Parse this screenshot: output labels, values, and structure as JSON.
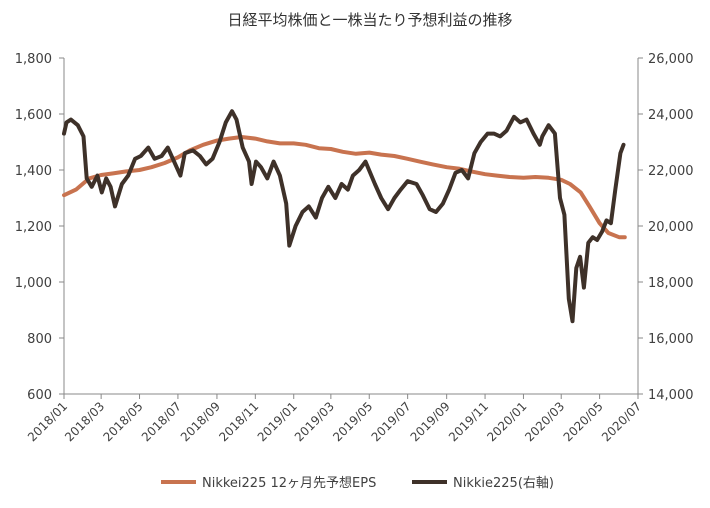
{
  "chart_data": {
    "type": "line",
    "title": "日経平均株価と一株当たり予想利益の推移",
    "xlabel": "",
    "ylabel_left": "",
    "ylabel_right": "",
    "ylim_left": [
      600,
      1800
    ],
    "ylim_right": [
      14000,
      26000
    ],
    "y_ticks_left": [
      "600",
      "800",
      "1,000",
      "1,200",
      "1,400",
      "1,600",
      "1,800"
    ],
    "y_ticks_right": [
      "14,000",
      "16,000",
      "18,000",
      "20,000",
      "22,000",
      "24,000",
      "26,000"
    ],
    "x_ticks": [
      "2018/01",
      "2018/03",
      "2018/05",
      "2018/07",
      "2018/09",
      "2018/11",
      "2019/01",
      "2019/03",
      "2019/05",
      "2019/07",
      "2019/09",
      "2019/11",
      "2020/01",
      "2020/03",
      "2020/05",
      "2020/07"
    ],
    "x_range": [
      "2018/01",
      "2020/07"
    ],
    "grid": false,
    "legend_position": "bottom",
    "colors": {
      "eps": "#C8734F",
      "nikkei": "#3E3129",
      "axis": "#888888",
      "text": "#404040"
    },
    "series": [
      {
        "name": "Nikkei225 12ヶ月先予想EPS",
        "axis": "left",
        "x": [
          "2018/01/01",
          "2018/01/20",
          "2018/02/10",
          "2018/03/01",
          "2018/03/20",
          "2018/04/10",
          "2018/05/01",
          "2018/05/20",
          "2018/06/10",
          "2018/07/01",
          "2018/07/20",
          "2018/08/10",
          "2018/09/01",
          "2018/09/20",
          "2018/10/10",
          "2018/11/01",
          "2018/11/20",
          "2018/12/10",
          "2019/01/01",
          "2019/01/20",
          "2019/02/10",
          "2019/03/01",
          "2019/03/20",
          "2019/04/10",
          "2019/05/01",
          "2019/05/20",
          "2019/06/10",
          "2019/07/01",
          "2019/07/20",
          "2019/08/10",
          "2019/09/01",
          "2019/09/20",
          "2019/10/10",
          "2019/11/01",
          "2019/11/20",
          "2019/12/10",
          "2020/01/01",
          "2020/01/20",
          "2020/02/10",
          "2020/03/01",
          "2020/03/15",
          "2020/04/01",
          "2020/04/15",
          "2020/05/01",
          "2020/05/15",
          "2020/06/01",
          "2020/06/10"
        ],
        "values": [
          1310,
          1330,
          1370,
          1382,
          1388,
          1395,
          1400,
          1410,
          1425,
          1445,
          1470,
          1490,
          1505,
          1512,
          1518,
          1512,
          1502,
          1495,
          1495,
          1490,
          1478,
          1475,
          1465,
          1458,
          1462,
          1455,
          1450,
          1440,
          1430,
          1420,
          1410,
          1405,
          1395,
          1385,
          1380,
          1375,
          1372,
          1375,
          1372,
          1365,
          1350,
          1320,
          1270,
          1210,
          1175,
          1160,
          1160
        ]
      },
      {
        "name": "Nikkie225(右軸)",
        "axis": "right",
        "x": [
          "2018/01/01",
          "2018/01/05",
          "2018/01/12",
          "2018/01/23",
          "2018/02/01",
          "2018/02/06",
          "2018/02/14",
          "2018/02/23",
          "2018/03/02",
          "2018/03/09",
          "2018/03/16",
          "2018/03/23",
          "2018/04/03",
          "2018/04/13",
          "2018/04/24",
          "2018/05/03",
          "2018/05/15",
          "2018/05/25",
          "2018/06/05",
          "2018/06/15",
          "2018/06/25",
          "2018/07/05",
          "2018/07/12",
          "2018/07/25",
          "2018/08/05",
          "2018/08/15",
          "2018/08/25",
          "2018/09/05",
          "2018/09/15",
          "2018/09/25",
          "2018/10/02",
          "2018/10/12",
          "2018/10/22",
          "2018/10/26",
          "2018/11/02",
          "2018/11/10",
          "2018/11/20",
          "2018/11/30",
          "2018/12/10",
          "2018/12/20",
          "2018/12/25",
          "2019/01/04",
          "2019/01/15",
          "2019/01/25",
          "2019/02/05",
          "2019/02/15",
          "2019/02/25",
          "2019/03/08",
          "2019/03/18",
          "2019/03/28",
          "2019/04/05",
          "2019/04/15",
          "2019/04/25",
          "2019/05/10",
          "2019/05/20",
          "2019/05/31",
          "2019/06/10",
          "2019/06/20",
          "2019/07/01",
          "2019/07/15",
          "2019/07/25",
          "2019/08/05",
          "2019/08/15",
          "2019/08/26",
          "2019/09/05",
          "2019/09/15",
          "2019/09/25",
          "2019/10/05",
          "2019/10/15",
          "2019/10/25",
          "2019/11/05",
          "2019/11/15",
          "2019/11/25",
          "2019/12/05",
          "2019/12/17",
          "2019/12/27",
          "2020/01/06",
          "2020/01/17",
          "2020/01/27",
          "2020/01/31",
          "2020/02/10",
          "2020/02/20",
          "2020/02/28",
          "2020/03/06",
          "2020/03/13",
          "2020/03/19",
          "2020/03/25",
          "2020/03/31",
          "2020/04/06",
          "2020/04/13",
          "2020/04/20",
          "2020/04/27",
          "2020/05/05",
          "2020/05/12",
          "2020/05/19",
          "2020/05/26",
          "2020/06/03",
          "2020/06/08"
        ],
        "values": [
          23300,
          23700,
          23800,
          23600,
          23200,
          21700,
          21400,
          21800,
          21200,
          21700,
          21400,
          20700,
          21500,
          21800,
          22400,
          22500,
          22800,
          22400,
          22500,
          22800,
          22300,
          21800,
          22600,
          22700,
          22500,
          22200,
          22400,
          23000,
          23700,
          24100,
          23800,
          22800,
          22300,
          21500,
          22300,
          22100,
          21700,
          22300,
          21800,
          20800,
          19300,
          20000,
          20500,
          20700,
          20300,
          21000,
          21400,
          21000,
          21500,
          21300,
          21800,
          22000,
          22300,
          21500,
          21000,
          20600,
          21000,
          21300,
          21600,
          21500,
          21100,
          20600,
          20500,
          20800,
          21300,
          21900,
          22000,
          21700,
          22600,
          23000,
          23300,
          23300,
          23200,
          23400,
          23900,
          23700,
          23800,
          23300,
          22900,
          23200,
          23600,
          23300,
          21000,
          20400,
          17400,
          16600,
          18500,
          18900,
          17800,
          19400,
          19600,
          19500,
          19800,
          20200,
          20100,
          21300,
          22600,
          22900
        ]
      }
    ]
  }
}
